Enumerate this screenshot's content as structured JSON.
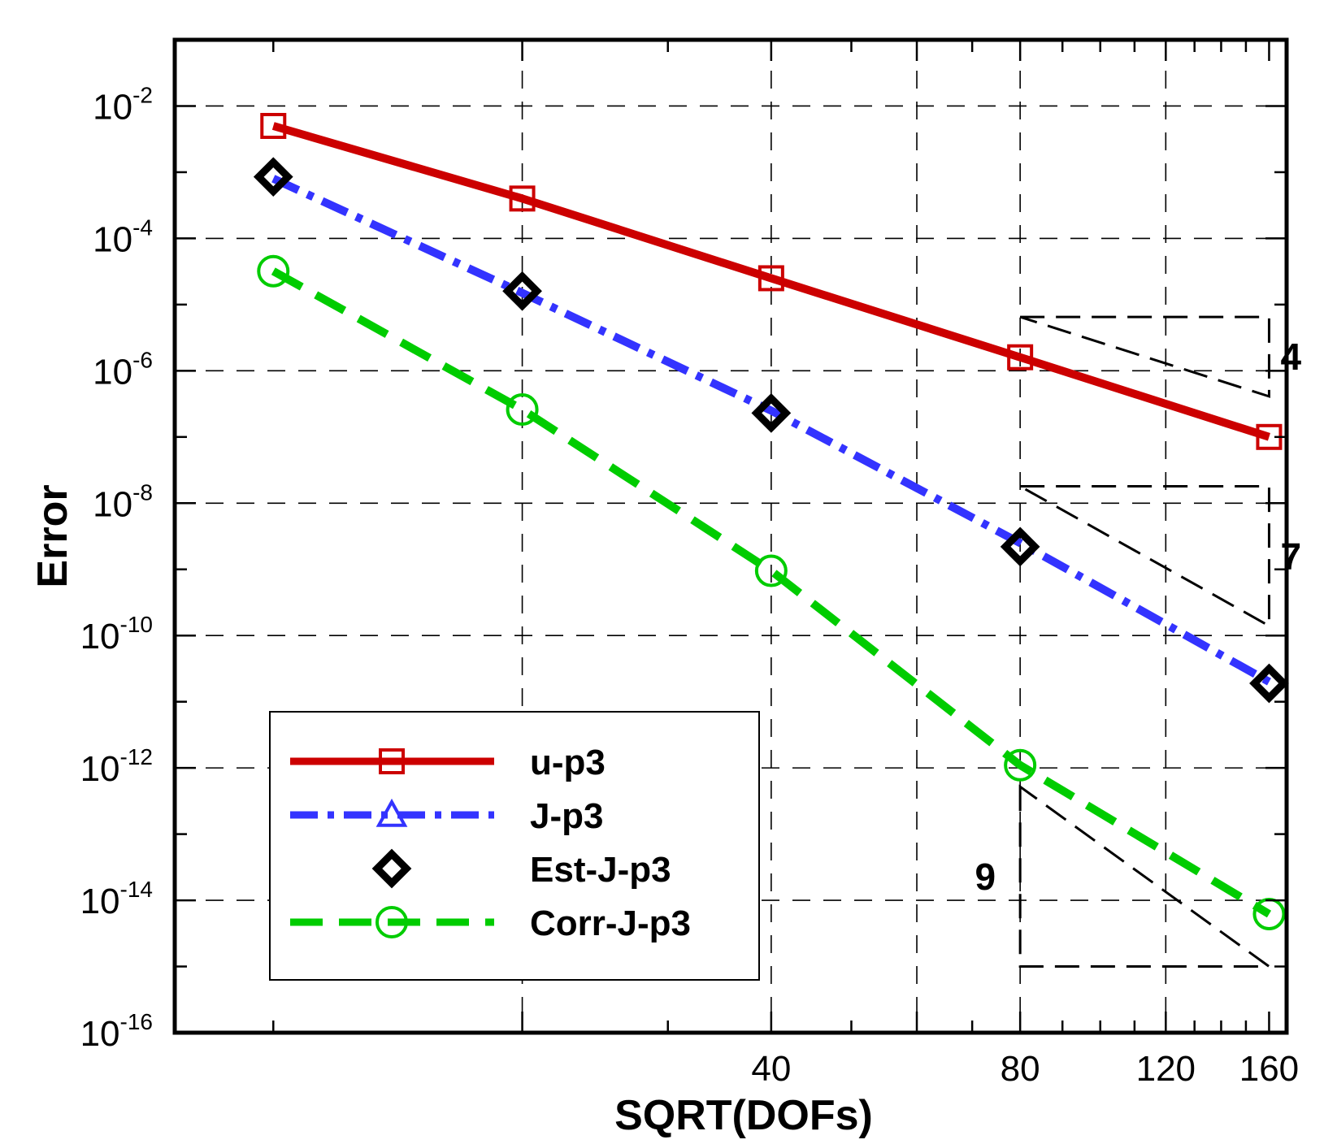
{
  "chart_data": {
    "type": "line",
    "xlabel": "SQRT(DOFs)",
    "ylabel": "Error",
    "xscale": "log",
    "yscale": "log",
    "xlim": [
      7.6,
      168
    ],
    "ylim": [
      1e-16,
      0.1
    ],
    "grid": true,
    "legend_position": "bottom-left",
    "x_tick_labels": [
      {
        "value": 40,
        "label": "40"
      },
      {
        "value": 80,
        "label": "80"
      },
      {
        "value": 120,
        "label": "120"
      },
      {
        "value": 160,
        "label": "160"
      }
    ],
    "x_major_gridlines": [
      20,
      40,
      60,
      80,
      120
    ],
    "y_tick_labels": [
      {
        "value": 0.01,
        "base": "10",
        "exp": "-2"
      },
      {
        "value": 0.0001,
        "base": "10",
        "exp": "-4"
      },
      {
        "value": 1e-06,
        "base": "10",
        "exp": "-6"
      },
      {
        "value": 1e-08,
        "base": "10",
        "exp": "-8"
      },
      {
        "value": 1e-10,
        "base": "10",
        "exp": "-10"
      },
      {
        "value": 1e-12,
        "base": "10",
        "exp": "-12"
      },
      {
        "value": 1e-14,
        "base": "10",
        "exp": "-14"
      },
      {
        "value": 1e-16,
        "base": "10",
        "exp": "-16"
      }
    ],
    "x": [
      10,
      20,
      40,
      80,
      160
    ],
    "series": [
      {
        "name": "u-p3",
        "color": "#cc0000",
        "marker": "square",
        "line": "solid",
        "values": [
          0.005,
          0.0004,
          2.5e-05,
          1.6e-06,
          1e-07
        ]
      },
      {
        "name": "J-p3",
        "color": "#3333ff",
        "marker": "triangle",
        "line": "dashdot",
        "values": [
          0.0008,
          1.5e-05,
          2.5e-07,
          2.5e-09,
          2e-11
        ]
      },
      {
        "name": "Est-J-p3",
        "color": "#000000",
        "marker": "diamond",
        "line": "none",
        "values": [
          0.00085,
          1.6e-05,
          2.3e-07,
          2.2e-09,
          1.9e-11
        ]
      },
      {
        "name": "Corr-J-p3",
        "color": "#00cc00",
        "marker": "circle",
        "line": "dashed",
        "values": [
          3.2e-05,
          2.6e-07,
          9.5e-10,
          1.1e-12,
          6.2e-15
        ]
      }
    ],
    "slope_triangles": [
      {
        "label": "4",
        "x_start": 80,
        "x_end": 160,
        "y_start": 6.5e-06,
        "y_end": 4.1e-07,
        "corner": "right"
      },
      {
        "label": "7",
        "x_start": 80,
        "x_end": 160,
        "y_start": 1.8e-08,
        "y_end": 1.4e-10,
        "corner": "right"
      },
      {
        "label": "9",
        "x_start": 80,
        "x_end": 160,
        "y_start": 5.2e-13,
        "y_end": 1e-15,
        "corner": "left"
      }
    ]
  }
}
